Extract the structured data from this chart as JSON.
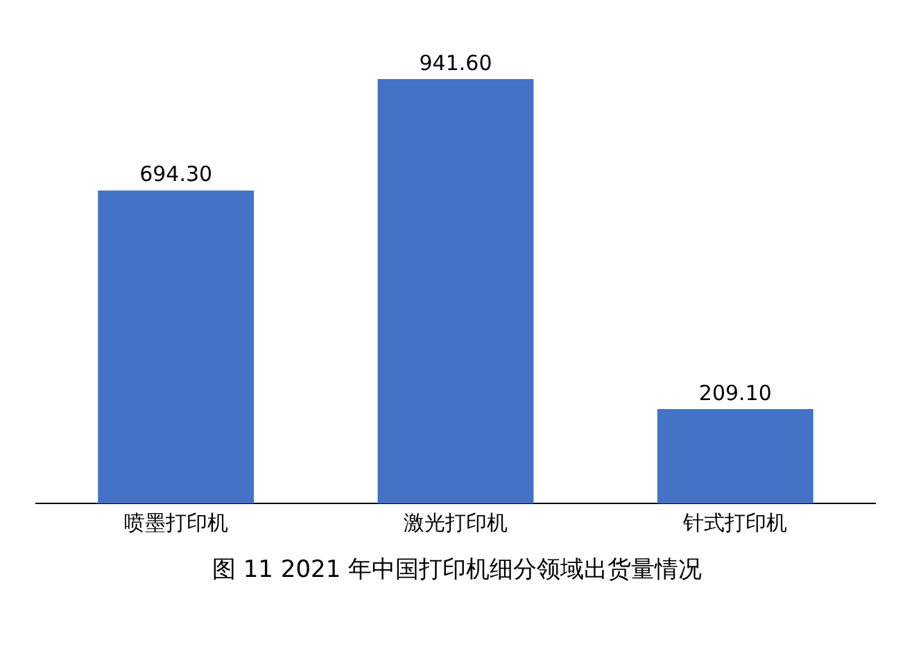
{
  "chart_data": {
    "type": "bar",
    "title": "图 11 2021 年中国打印机细分领域出货量情况",
    "categories": [
      "喷墨打印机",
      "激光打印机",
      "针式打印机"
    ],
    "values": [
      694.3,
      941.6,
      209.1
    ],
    "value_labels": [
      "694.30",
      "941.60",
      "209.10"
    ],
    "color": "#4472c4",
    "grid": false,
    "legend": false
  }
}
